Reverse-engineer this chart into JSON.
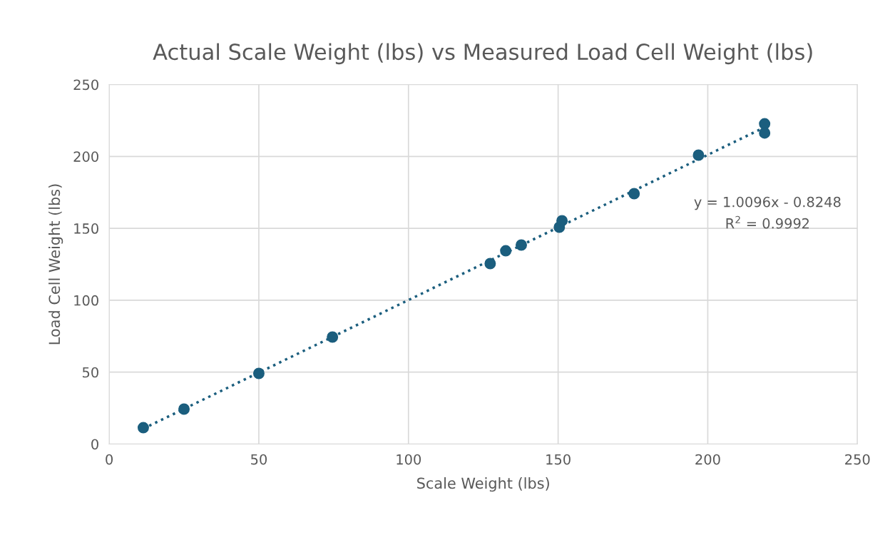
{
  "chart_data": {
    "type": "scatter",
    "title": "Actual Scale Weight (lbs) vs Measured Load Cell Weight (lbs)",
    "xlabel": "Scale Weight (lbs)",
    "ylabel": "Load Cell Weight (lbs)",
    "series": [
      {
        "color": "#1b5e7e",
        "marker": "circle",
        "x": [
          11.4,
          25.0,
          50.0,
          74.6,
          127.3,
          132.5,
          137.7,
          150.4,
          151.3,
          175.4,
          196.9,
          219.0,
          219.0
        ],
        "values": [
          11.4,
          24.3,
          49.1,
          74.4,
          125.5,
          134.4,
          138.4,
          150.8,
          155.3,
          174.1,
          200.9,
          222.7,
          216.3
        ]
      },
      {
        "type": "line",
        "color": "#1b5e7e",
        "line_style": "dotted",
        "marker": "none",
        "x": [
          11.4,
          219.0
        ],
        "values": [
          10.7,
          220.3
        ]
      }
    ],
    "annotations": [
      "y = 1.0096x - 0.8248",
      "R$^{2}$ = 0.9992"
    ],
    "xlim": [
      0,
      250
    ],
    "ylim": [
      0,
      250
    ],
    "xticks": [
      0,
      50,
      100,
      150,
      200,
      250
    ],
    "yticks": [
      0,
      50,
      100,
      150,
      200,
      250
    ],
    "grid": true,
    "legend": false
  }
}
